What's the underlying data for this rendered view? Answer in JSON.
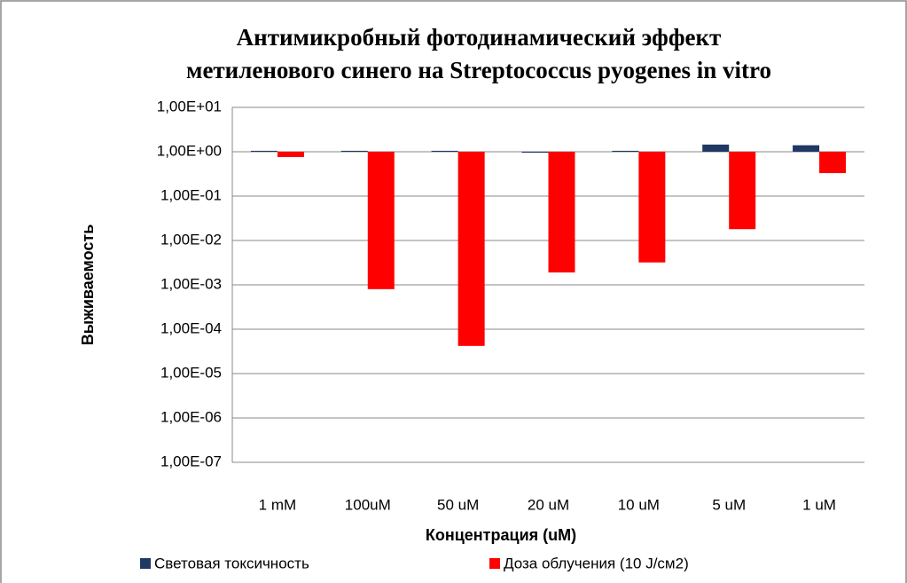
{
  "chart_data": {
    "type": "bar",
    "title": [
      "Антимикробный фотодинамический эффект",
      "метиленового синего на Streptococcus pyogenes in vitro"
    ],
    "x_label": "Концентрация (uM)",
    "y_label": "Выживаемость",
    "categories": [
      "1 mM",
      "100uM",
      "50 uM",
      "20 uM",
      "10 uM",
      "5 uM",
      "1 uM"
    ],
    "series": [
      {
        "name": "Световая токсичность",
        "color": "#1f3864",
        "values": [
          1.05,
          1.05,
          1.05,
          0.95,
          1.05,
          1.45,
          1.4
        ]
      },
      {
        "name": "Доза облучения (10 J/см2)",
        "color": "#ff0000",
        "values": [
          0.76,
          0.0008,
          4.2e-05,
          0.0019,
          0.0032,
          0.018,
          0.33
        ]
      }
    ],
    "log_scale": true,
    "ylim": [
      1e-07,
      10
    ],
    "yticks": [
      {
        "value": 10,
        "label": "1,00E+01"
      },
      {
        "value": 1,
        "label": "1,00E+00"
      },
      {
        "value": 0.1,
        "label": "1,00E-01"
      },
      {
        "value": 0.01,
        "label": "1,00E-02"
      },
      {
        "value": 0.001,
        "label": "1,00E-03"
      },
      {
        "value": 0.0001,
        "label": "1,00E-04"
      },
      {
        "value": 1e-05,
        "label": "1,00E-05"
      },
      {
        "value": 1e-06,
        "label": "1,00E-06"
      },
      {
        "value": 1e-07,
        "label": "1,00E-07"
      }
    ],
    "grid": true,
    "legend": "bottom"
  }
}
